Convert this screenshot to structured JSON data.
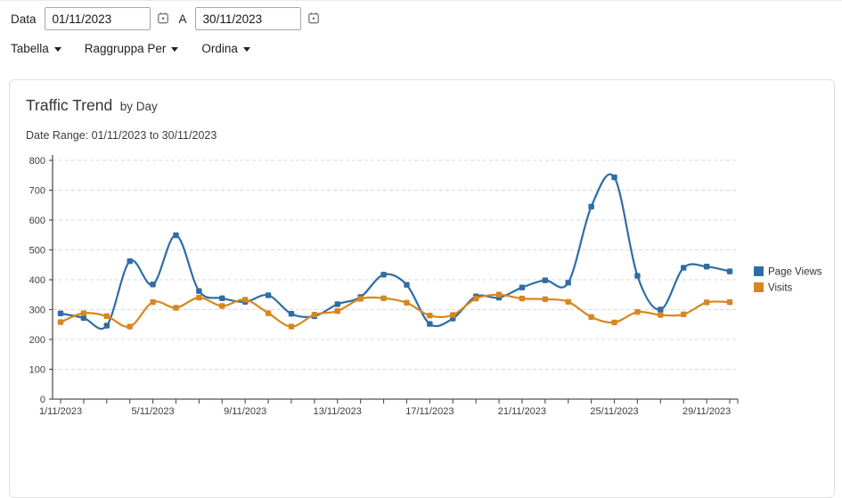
{
  "filter_bar": {
    "date_label": "Data",
    "date_from": "01/11/2023",
    "to_label": "A",
    "date_to": "30/11/2023",
    "calendar_icon": "calendar-icon",
    "dropdowns": [
      {
        "label": "Tabella"
      },
      {
        "label": "Raggruppa Per"
      },
      {
        "label": "Ordina"
      }
    ]
  },
  "card": {
    "title": "Traffic Trend",
    "title_suffix": "by Day",
    "subtitle": "Date Range: 01/11/2023 to 30/11/2023"
  },
  "chart_data": {
    "type": "line",
    "title": "Traffic Trend by Day",
    "subtitle": "Date Range: 01/11/2023 to 30/11/2023",
    "x": [
      "1/11/2023",
      "2/11/2023",
      "3/11/2023",
      "4/11/2023",
      "5/11/2023",
      "6/11/2023",
      "7/11/2023",
      "8/11/2023",
      "9/11/2023",
      "10/11/2023",
      "11/11/2023",
      "12/11/2023",
      "13/11/2023",
      "14/11/2023",
      "15/11/2023",
      "16/11/2023",
      "17/11/2023",
      "18/11/2023",
      "19/11/2023",
      "20/11/2023",
      "21/11/2023",
      "22/11/2023",
      "23/11/2023",
      "24/11/2023",
      "25/11/2023",
      "26/11/2023",
      "27/11/2023",
      "28/11/2023",
      "29/11/2023",
      "30/11/2023"
    ],
    "x_tick_label_indices": [
      0,
      4,
      8,
      12,
      16,
      20,
      24,
      28
    ],
    "x_tick_labels": [
      "1/11/2023",
      "5/11/2023",
      "9/11/2023",
      "13/11/2023",
      "17/11/2023",
      "21/11/2023",
      "25/11/2023",
      "29/11/2023"
    ],
    "series": [
      {
        "name": "Page Views",
        "color": "#2e6da4",
        "values": [
          287,
          272,
          246,
          462,
          384,
          549,
          362,
          338,
          326,
          348,
          286,
          278,
          318,
          342,
          417,
          383,
          252,
          270,
          344,
          340,
          374,
          398,
          390,
          645,
          743,
          413,
          300,
          440,
          444,
          428
        ]
      },
      {
        "name": "Visits",
        "color": "#d6871f",
        "values": [
          258,
          288,
          278,
          243,
          325,
          306,
          340,
          312,
          333,
          288,
          243,
          283,
          295,
          336,
          338,
          323,
          280,
          282,
          337,
          350,
          337,
          335,
          326,
          275,
          257,
          292,
          282,
          284,
          324,
          325
        ]
      }
    ],
    "ylim": [
      0,
      800
    ],
    "y_step": 100,
    "grid": "horizontal-dashed",
    "grid_color": "#d9d9d9",
    "axis_color": "#505050",
    "tick_label_color": "#3d3d3d",
    "legend_position": "right"
  }
}
